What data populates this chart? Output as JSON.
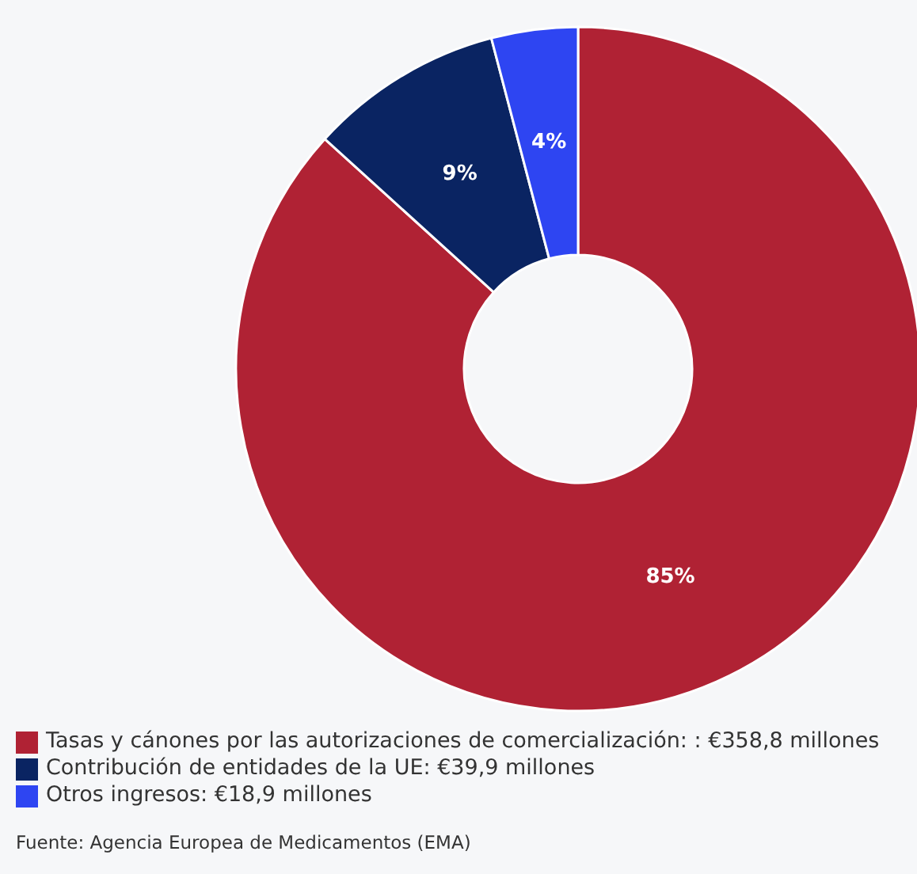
{
  "chart_data": {
    "type": "donut",
    "categories": [
      "Tasas y cánones por las autorizaciones de comercialización: : €358,8 millones",
      "Contribución de entidades de la UE: €39,9 millones",
      "Otros ingresos: €18,9 millones"
    ],
    "values": [
      85,
      9,
      4
    ],
    "value_labels": [
      "85%",
      "9%",
      "4%"
    ],
    "colors": [
      "#b02234",
      "#0a2462",
      "#2e45f2"
    ],
    "legend": "bottom",
    "annotations": [
      "Fuente: Agencia Europea de Medicamentos (EMA)"
    ]
  }
}
